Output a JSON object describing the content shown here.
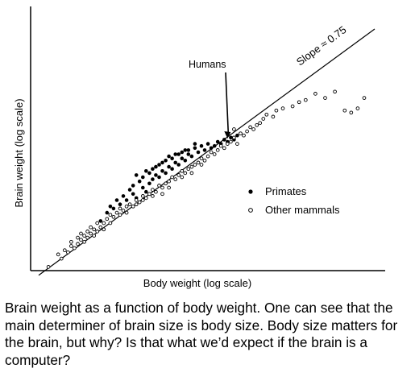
{
  "chart_data": {
    "type": "scatter",
    "title": "",
    "xlabel": "Body weight (log scale)",
    "ylabel": "Brain weight (log scale)",
    "xlim": [
      0,
      100
    ],
    "ylim": [
      0,
      100
    ],
    "grid": false,
    "legend_position": "right",
    "fit_line": {
      "label": "Slope ≈ 0.75",
      "slope": 0.75,
      "x": [
        0,
        100
      ],
      "y": [
        -3,
        92
      ]
    },
    "annotations": [
      {
        "text": "Humans",
        "point": [
          58.0,
          61.0
        ]
      }
    ],
    "series": [
      {
        "name": "Primates",
        "marker": "filled",
        "points": [
          [
            19,
            23
          ],
          [
            21,
            27
          ],
          [
            22,
            30
          ],
          [
            23,
            29
          ],
          [
            24,
            33
          ],
          [
            25,
            31
          ],
          [
            26,
            35
          ],
          [
            27,
            33
          ],
          [
            28,
            38
          ],
          [
            29,
            36
          ],
          [
            29,
            40
          ],
          [
            30,
            34
          ],
          [
            31,
            42
          ],
          [
            32,
            39
          ],
          [
            32,
            44
          ],
          [
            33,
            37
          ],
          [
            34,
            46
          ],
          [
            34,
            41
          ],
          [
            35,
            48
          ],
          [
            35,
            43
          ],
          [
            36,
            45
          ],
          [
            37,
            50
          ],
          [
            37,
            44
          ],
          [
            38,
            47
          ],
          [
            39,
            52
          ],
          [
            39,
            46
          ],
          [
            40,
            49
          ],
          [
            41,
            53
          ],
          [
            41,
            48
          ],
          [
            42,
            51
          ],
          [
            43,
            55
          ],
          [
            43,
            50
          ],
          [
            44,
            53
          ],
          [
            45,
            57
          ],
          [
            45,
            52
          ],
          [
            46,
            55
          ],
          [
            47,
            54
          ],
          [
            48,
            58
          ],
          [
            49,
            56
          ],
          [
            50,
            59
          ],
          [
            51,
            57
          ],
          [
            52,
            60
          ],
          [
            53,
            58
          ],
          [
            54,
            59
          ],
          [
            55,
            61
          ],
          [
            56,
            60
          ],
          [
            57,
            62
          ],
          [
            58,
            61
          ],
          [
            59,
            63
          ],
          [
            60,
            62
          ],
          [
            61,
            64
          ],
          [
            30,
            45
          ],
          [
            33,
            47
          ],
          [
            36,
            49
          ],
          [
            38,
            51
          ],
          [
            40,
            54
          ],
          [
            42,
            55
          ],
          [
            44,
            56
          ],
          [
            46,
            57
          ],
          [
            48,
            60
          ]
        ]
      },
      {
        "name": "Other mammals",
        "marker": "open",
        "points": [
          [
            3,
            1
          ],
          [
            6,
            7
          ],
          [
            7,
            5
          ],
          [
            8,
            9
          ],
          [
            9,
            8
          ],
          [
            10,
            11
          ],
          [
            10,
            13
          ],
          [
            11,
            10
          ],
          [
            12,
            12
          ],
          [
            12,
            15
          ],
          [
            13,
            14
          ],
          [
            13,
            17
          ],
          [
            14,
            16
          ],
          [
            14,
            13
          ],
          [
            15,
            18
          ],
          [
            15,
            15
          ],
          [
            16,
            17
          ],
          [
            16,
            20
          ],
          [
            17,
            19
          ],
          [
            17,
            16
          ],
          [
            18,
            22
          ],
          [
            18,
            18
          ],
          [
            19,
            20
          ],
          [
            20,
            22
          ],
          [
            20,
            19
          ],
          [
            21,
            24
          ],
          [
            22,
            22
          ],
          [
            22,
            26
          ],
          [
            23,
            25
          ],
          [
            24,
            27
          ],
          [
            25,
            26
          ],
          [
            25,
            29
          ],
          [
            26,
            28
          ],
          [
            27,
            30
          ],
          [
            27,
            27
          ],
          [
            28,
            31
          ],
          [
            29,
            30
          ],
          [
            30,
            33
          ],
          [
            30,
            31
          ],
          [
            31,
            32
          ],
          [
            32,
            35
          ],
          [
            32,
            33
          ],
          [
            33,
            34
          ],
          [
            34,
            36
          ],
          [
            35,
            38
          ],
          [
            35,
            35
          ],
          [
            36,
            37
          ],
          [
            37,
            40
          ],
          [
            38,
            39
          ],
          [
            38,
            36
          ],
          [
            39,
            41
          ],
          [
            40,
            42
          ],
          [
            40,
            39
          ],
          [
            41,
            44
          ],
          [
            42,
            43
          ],
          [
            43,
            45
          ],
          [
            44,
            47
          ],
          [
            44,
            44
          ],
          [
            45,
            46
          ],
          [
            46,
            48
          ],
          [
            47,
            49
          ],
          [
            47,
            46
          ],
          [
            48,
            50
          ],
          [
            49,
            51
          ],
          [
            50,
            53
          ],
          [
            50,
            50
          ],
          [
            51,
            52
          ],
          [
            52,
            54
          ],
          [
            53,
            56
          ],
          [
            54,
            55
          ],
          [
            55,
            57
          ],
          [
            56,
            59
          ],
          [
            57,
            58
          ],
          [
            58,
            60
          ],
          [
            59,
            61
          ],
          [
            60,
            63
          ],
          [
            61,
            60
          ],
          [
            62,
            65
          ],
          [
            63,
            64
          ],
          [
            64,
            66
          ],
          [
            65,
            68
          ],
          [
            66,
            67
          ],
          [
            67,
            69
          ],
          [
            68,
            70
          ],
          [
            69,
            72
          ],
          [
            70,
            74
          ],
          [
            72,
            73
          ],
          [
            73,
            76
          ],
          [
            75,
            77
          ],
          [
            78,
            78
          ],
          [
            80,
            80
          ],
          [
            82,
            81
          ],
          [
            85,
            84
          ],
          [
            88,
            82
          ],
          [
            91,
            85
          ],
          [
            94,
            76
          ],
          [
            96,
            75
          ],
          [
            98,
            77
          ],
          [
            100,
            82
          ],
          [
            60,
            67
          ]
        ]
      }
    ]
  },
  "caption": {
    "text": "Brain weight as a function of body weight. One can see that the main determiner of brain size is body size. Body size matters for the brain, but why? Is that what we’d expect if the brain is a computer?"
  }
}
